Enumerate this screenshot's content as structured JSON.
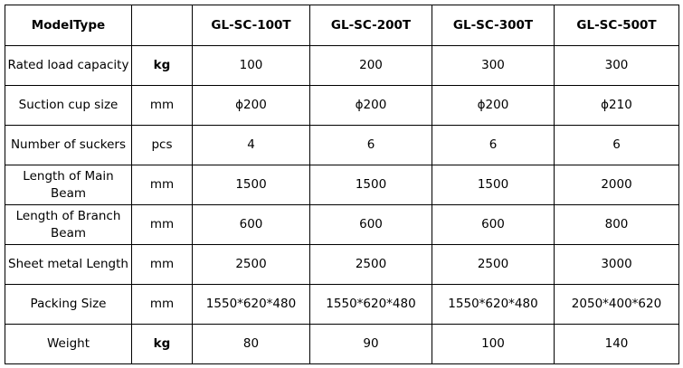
{
  "table": {
    "header": {
      "label": "ModelType",
      "models": [
        "GL-SC-100T",
        "GL-SC-200T",
        "GL-SC-300T",
        "GL-SC-500T"
      ]
    },
    "rows": [
      {
        "name": "Rated load capacity",
        "unit": "kg",
        "values": [
          "100",
          "200",
          "300",
          "300"
        ]
      },
      {
        "name": "Suction cup size",
        "unit": "mm",
        "values": [
          "ϕ200",
          "ϕ200",
          "ϕ200",
          "ϕ210"
        ]
      },
      {
        "name": "Number of suckers",
        "unit": "pcs",
        "values": [
          "4",
          "6",
          "6",
          "6"
        ]
      },
      {
        "name": "Length of Main Beam",
        "unit": "mm",
        "values": [
          "1500",
          "1500",
          "1500",
          "2000"
        ]
      },
      {
        "name": "Length of Branch Beam",
        "unit": "mm",
        "values": [
          "600",
          "600",
          "600",
          "800"
        ]
      },
      {
        "name": "Sheet metal Length",
        "unit": "mm",
        "values": [
          "2500",
          "2500",
          "2500",
          "3000"
        ]
      },
      {
        "name": "Packing Size",
        "unit": "mm",
        "values": [
          "1550*620*480",
          "1550*620*480",
          "1550*620*480",
          "2050*400*620"
        ]
      },
      {
        "name": "Weight",
        "unit": "kg",
        "values": [
          "80",
          "90",
          "100",
          "140"
        ]
      }
    ]
  }
}
